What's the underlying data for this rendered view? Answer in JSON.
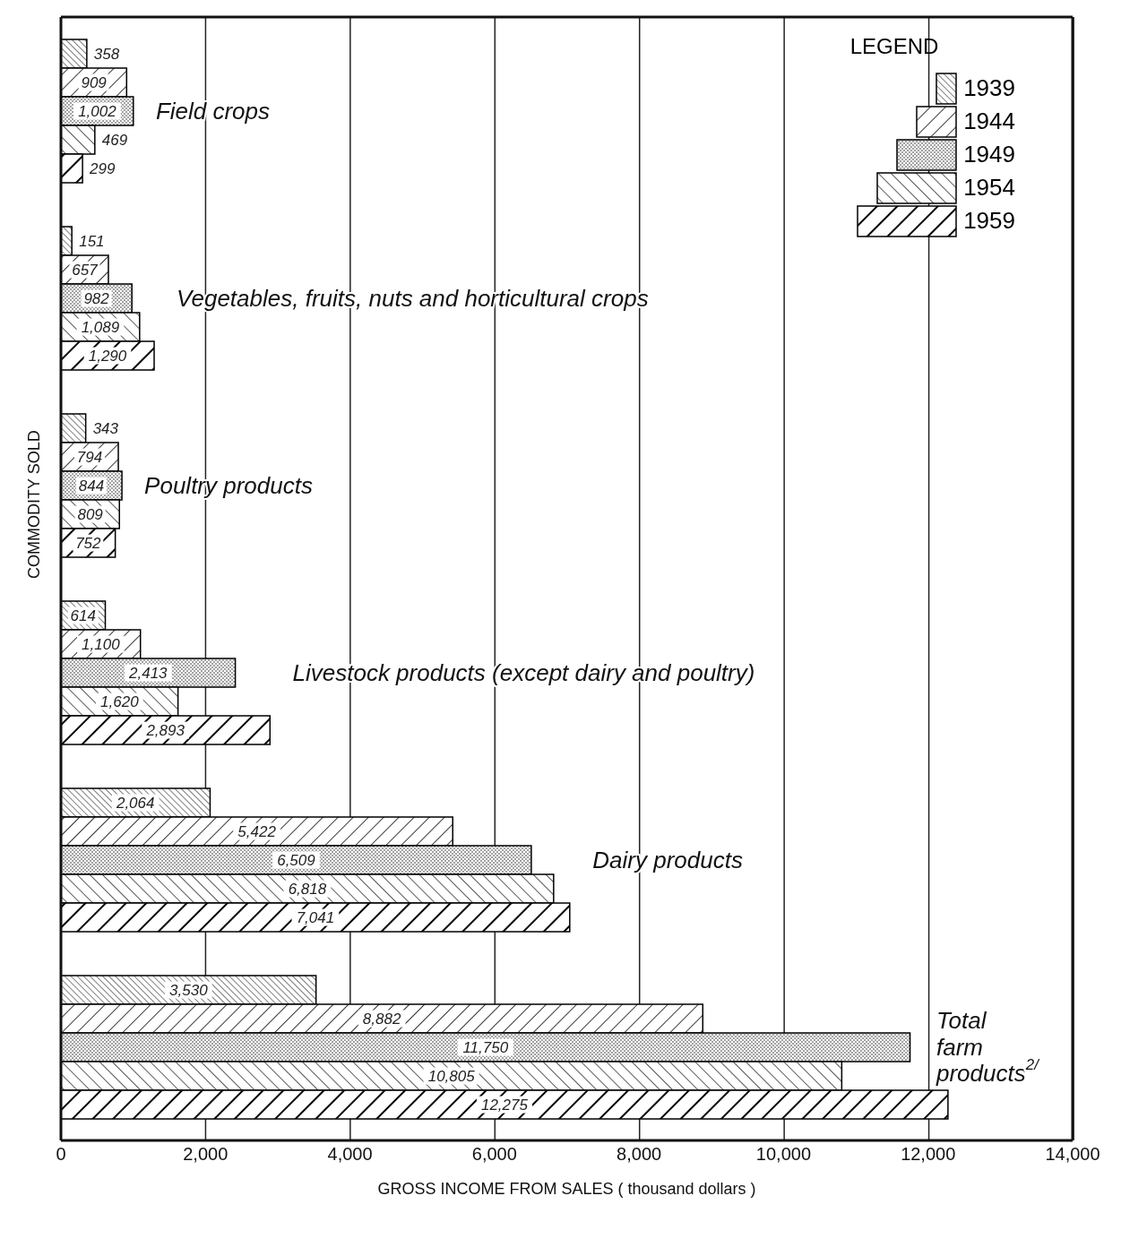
{
  "chart_data": {
    "type": "bar",
    "orientation": "horizontal",
    "xlabel": "GROSS INCOME FROM SALES ( thousand dollars )",
    "ylabel": "COMMODITY SOLD",
    "legend_title": "LEGEND",
    "legend": "top right",
    "grid": "x",
    "tick_labels": "x",
    "categories": [
      "Field crops",
      "Vegetables, fruits, nuts and horticultural crops",
      "Poultry products",
      "Livestock products  (except dairy and poultry)",
      "Dairy products",
      "Total farm products$^{2/}$"
    ],
    "xlim": [
      0,
      14000
    ],
    "xticks": [
      0,
      {
        "value": 2000,
        "label": "2,000"
      },
      {
        "value": 4000,
        "label": "4,000"
      },
      {
        "value": 6000,
        "label": "6,000"
      },
      {
        "value": 8000,
        "label": "8,000"
      },
      {
        "value": 10000,
        "label": "10,000"
      },
      {
        "value": 12000,
        "label": "12,000"
      },
      {
        "value": 14000,
        "label": "14,000"
      }
    ],
    "series": [
      {
        "name": "1939",
        "color": "#000000",
        "values": [
          358,
          151,
          343,
          614,
          2064,
          3530
        ],
        "value_labels": [
          "358",
          "151",
          "343",
          "614",
          "2,064",
          "3,530"
        ]
      },
      {
        "name": "1944",
        "color": "#000000",
        "values": [
          909,
          657,
          794,
          1100,
          5422,
          8882
        ],
        "value_labels": [
          "909",
          "657",
          "794",
          "1,100",
          "5,422",
          "8,882"
        ]
      },
      {
        "name": "1949",
        "color": "#000000",
        "values": [
          1002,
          982,
          844,
          2413,
          6509,
          11750
        ],
        "value_labels": [
          "1,002",
          "982",
          "844",
          "2,413",
          "6,509",
          "11,750"
        ]
      },
      {
        "name": "1954",
        "color": "#000000",
        "values": [
          469,
          1089,
          809,
          1620,
          6818,
          10805
        ],
        "value_labels": [
          "469",
          "1,089",
          "809",
          "1,620",
          "6,818",
          "10,805"
        ]
      },
      {
        "name": "1959",
        "color": "#000000",
        "values": [
          299,
          1290,
          752,
          2893,
          7041,
          12275
        ],
        "value_labels": [
          "299",
          "1,290",
          "752",
          "2,893",
          "7,041",
          "12,275"
        ]
      }
    ]
  }
}
